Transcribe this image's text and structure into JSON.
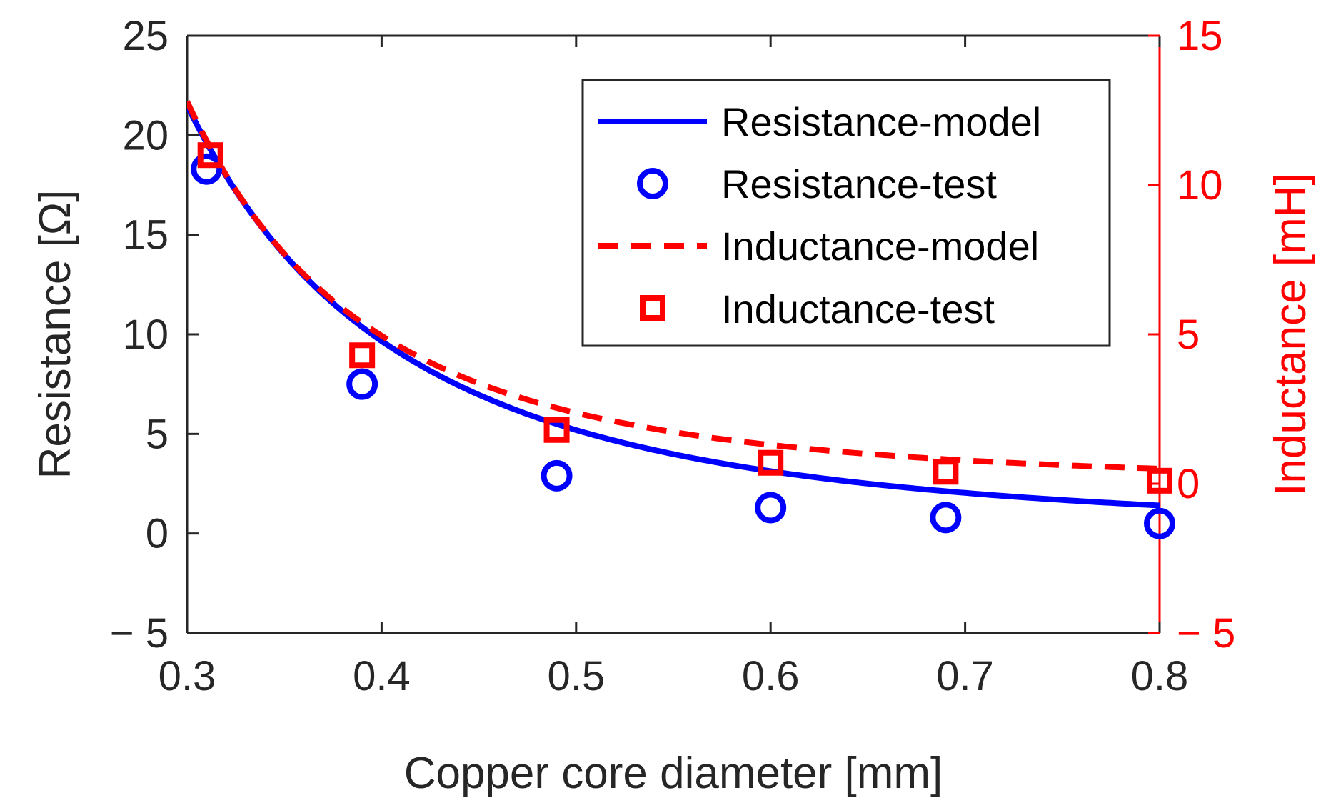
{
  "chart_data": {
    "type": "line",
    "title": "",
    "xlabel": "Copper core diameter [mm]",
    "ylabel_left": "Resistance [Ω]",
    "ylabel_right": "Inductance [mH]",
    "xlim": [
      0.3,
      0.8
    ],
    "ylim_left": [
      -5,
      25
    ],
    "ylim_right": [
      -5,
      15
    ],
    "xticks": [
      0.3,
      0.4,
      0.5,
      0.6,
      0.7,
      0.8
    ],
    "xtick_labels": [
      "0.3",
      "0.4",
      "0.5",
      "0.6",
      "0.7",
      "0.8"
    ],
    "yticks_left": [
      -5,
      0,
      5,
      10,
      15,
      20,
      25
    ],
    "ytick_labels_left": [
      "− 5",
      "0",
      "5",
      "10",
      "15",
      "20",
      "25"
    ],
    "yticks_right": [
      -5,
      0,
      5,
      10,
      15
    ],
    "ytick_labels_right": [
      "− 5",
      "0",
      "5",
      "10",
      "15"
    ],
    "grid": false,
    "legend_position": "top-right",
    "series": [
      {
        "name": "Resistance-model",
        "axis": "left",
        "style": "solid-line",
        "color": "#0000ff",
        "model": {
          "type": "power",
          "a": 0.3,
          "b": 21.5,
          "p": 2.78
        }
      },
      {
        "name": "Resistance-test",
        "axis": "left",
        "style": "circle-markers",
        "color": "#0000ff",
        "x": [
          0.31,
          0.39,
          0.49,
          0.6,
          0.69,
          0.8
        ],
        "y": [
          18.3,
          7.5,
          2.9,
          1.3,
          0.8,
          0.5
        ]
      },
      {
        "name": "Inductance-model",
        "axis": "right",
        "style": "dashed-line",
        "color": "#ff0000",
        "model": {
          "type": "power",
          "a": 0.3,
          "b": 12.8,
          "p": 3.3
        }
      },
      {
        "name": "Inductance-test",
        "axis": "right",
        "style": "square-markers",
        "color": "#ff0000",
        "x": [
          0.312,
          0.39,
          0.49,
          0.6,
          0.69,
          0.8
        ],
        "y": [
          11.0,
          4.3,
          1.8,
          0.7,
          0.4,
          0.1
        ]
      }
    ]
  }
}
